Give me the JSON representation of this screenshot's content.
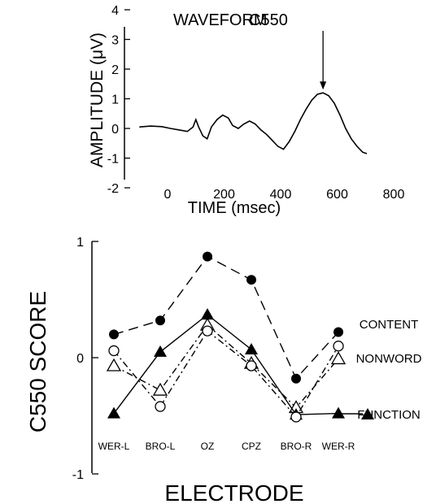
{
  "chart_data": [
    {
      "type": "line",
      "title": "WAVEFORM",
      "annotation": "C550",
      "annotation_x": 550,
      "xlabel": "TIME (msec)",
      "ylabel": "AMPLITUDE (μV)",
      "xlim": [
        -200,
        800
      ],
      "ylim": [
        -2,
        4
      ],
      "xticks": [
        0,
        200,
        400,
        600,
        800
      ],
      "yticks": [
        -2,
        -1,
        0,
        1,
        2,
        3,
        4
      ],
      "grid": false,
      "series": [
        {
          "x": [
            -100,
            -60,
            -20,
            10,
            40,
            70,
            90,
            100,
            110,
            125,
            140,
            155,
            175,
            195,
            215,
            230,
            250,
            270,
            290,
            310,
            330,
            350,
            370,
            390,
            410,
            430,
            450,
            470,
            490,
            510,
            530,
            550,
            570,
            590,
            610,
            630,
            650,
            670,
            690,
            705
          ],
          "y": [
            0.05,
            0.08,
            0.06,
            0.0,
            -0.05,
            -0.1,
            0.05,
            0.3,
            0.05,
            -0.25,
            -0.35,
            0.05,
            0.3,
            0.45,
            0.35,
            0.1,
            0.0,
            0.15,
            0.25,
            0.15,
            -0.05,
            -0.2,
            -0.4,
            -0.6,
            -0.7,
            -0.45,
            -0.1,
            0.3,
            0.65,
            0.95,
            1.15,
            1.2,
            1.1,
            0.85,
            0.45,
            0.0,
            -0.35,
            -0.6,
            -0.8,
            -0.85
          ]
        }
      ]
    },
    {
      "type": "line",
      "xlabel": "ELECTRODE",
      "ylabel": "C550 SCORE",
      "ylim": [
        -1,
        1
      ],
      "yticks": [
        -1,
        0,
        1
      ],
      "categories": [
        "WER-L",
        "BRO-L",
        "OZ",
        "CPZ",
        "BRO-R",
        "WER-R"
      ],
      "grid": false,
      "legend": "right, labels beside line ends",
      "series": [
        {
          "name": "CONTENT",
          "marker": "filled-circle",
          "line": "dashed",
          "values": [
            0.2,
            0.32,
            0.87,
            0.67,
            -0.18,
            0.22
          ]
        },
        {
          "name": "NONWORD",
          "marker": "open-triangle",
          "line": "dash-dot",
          "values": [
            -0.07,
            -0.28,
            0.28,
            -0.05,
            -0.43,
            -0.01
          ]
        },
        {
          "name": "FUNCTION",
          "marker": "filled-triangle",
          "line": "solid",
          "values": [
            -0.48,
            0.05,
            0.37,
            0.07,
            -0.49,
            -0.48
          ]
        },
        {
          "name": "",
          "marker": "open-circle",
          "line": "dash-dot",
          "values": [
            0.06,
            -0.42,
            0.23,
            -0.07,
            -0.51,
            0.1
          ]
        }
      ]
    }
  ]
}
